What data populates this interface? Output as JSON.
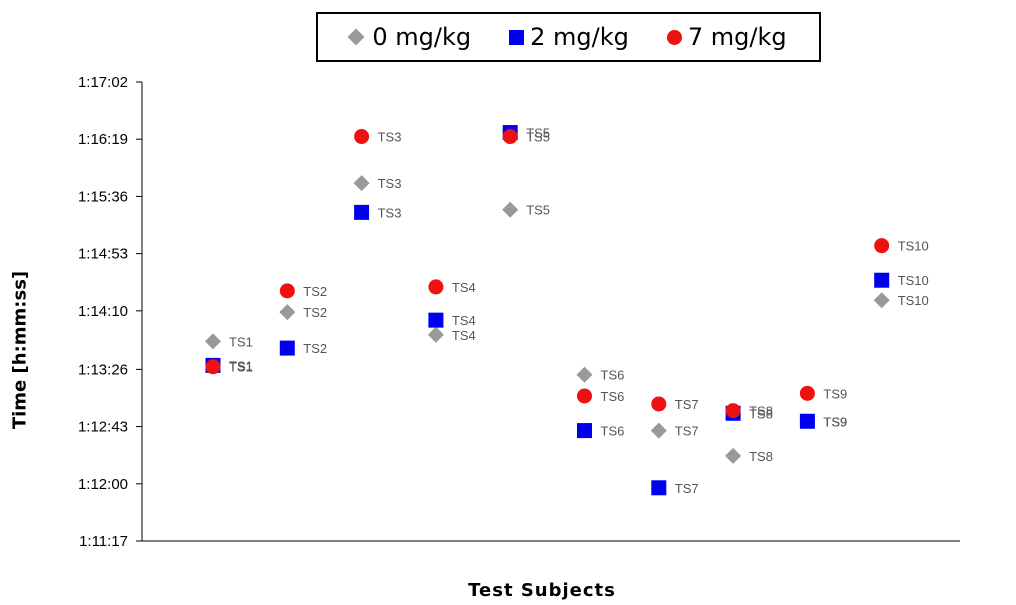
{
  "chart_data": {
    "type": "scatter",
    "title": "",
    "xlabel": "Test Subjects",
    "ylabel": "Time [h:mm:ss]",
    "categories": [
      "TS1",
      "TS2",
      "TS3",
      "TS4",
      "TS5",
      "TS6",
      "TS7",
      "TS8",
      "TS9",
      "TS10"
    ],
    "y_ticks": [
      "1:11:17",
      "1:12:00",
      "1:12:43",
      "1:13:26",
      "1:14:10",
      "1:14:53",
      "1:15:36",
      "1:16:19",
      "1:17:02"
    ],
    "ylim": [
      "1:11:17",
      "1:17:02"
    ],
    "grid": false,
    "legend_position": "top",
    "series": [
      {
        "name": "0 mg/kg",
        "marker": "diamond",
        "color": "#999999",
        "values": [
          "1:13:47",
          "1:14:09",
          "1:15:46",
          "1:13:52",
          "1:15:26",
          "1:13:22",
          "1:12:40",
          "1:12:21",
          "1:12:47",
          "1:14:18"
        ]
      },
      {
        "name": "2 mg/kg",
        "marker": "square",
        "color": "#0000ee",
        "values": [
          "1:13:29",
          "1:13:42",
          "1:15:24",
          "1:14:03",
          "1:16:24",
          "1:12:40",
          "1:11:57",
          "1:12:53",
          "1:12:47",
          "1:14:33"
        ]
      },
      {
        "name": "7 mg/kg",
        "marker": "circle",
        "color": "#ee1111",
        "values": [
          "1:13:28",
          "1:14:25",
          "1:16:21",
          "1:14:28",
          "1:16:21",
          "1:13:06",
          "1:13:00",
          "1:12:55",
          "1:13:08",
          "1:14:59"
        ]
      }
    ]
  }
}
